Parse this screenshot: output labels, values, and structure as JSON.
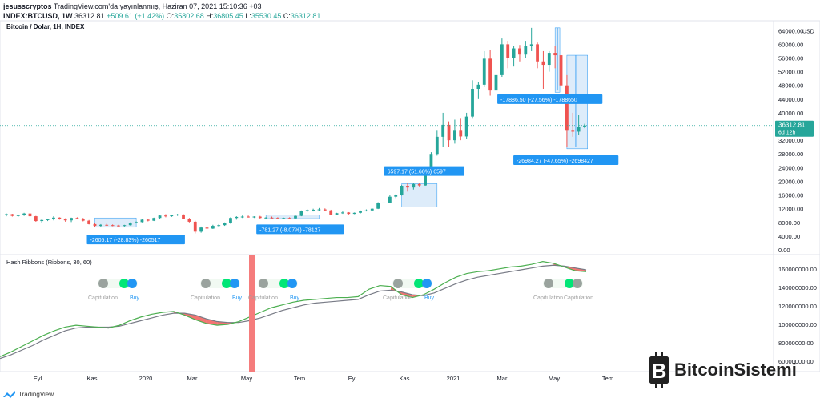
{
  "header": {
    "user": "jesusscryptos",
    "published": "TradingView.com'da yayınlanmış, Haziran 07, 2021 15:10:36 +03",
    "symbol": "INDEX:BTCUSD, 1W",
    "last": "36312.81",
    "change": "+509.61 (+1.42%)",
    "o_label": "O:",
    "o_val": "35802.68",
    "h_label": "H:",
    "h_val": "36805.45",
    "l_label": "L:",
    "l_val": "35530.45",
    "c_label": "C:",
    "c_val": "36312.81"
  },
  "colors": {
    "up": "#26a69a",
    "down": "#ef5350",
    "selection": "#cfe4f8",
    "label_bg": "#2196f3",
    "green_line": "#4caf50",
    "gray_line": "#787b86",
    "ribbon_fill": "#ef5350",
    "capitulation_bar": "#f57c7c",
    "buy_text": "#2196f3",
    "cap_text": "#9e9e9e",
    "price_tag": "#26a69a"
  },
  "chart_data": [
    {
      "type": "candlestick",
      "title": "Bitcoin / Dolar, 1H, INDEX",
      "axis_unit": "USD",
      "y_ticks": [
        "64000.00",
        "60000.00",
        "56000.00",
        "52000.00",
        "48000.00",
        "44000.00",
        "40000.00",
        "36000.00",
        "32000.00",
        "28000.00",
        "24000.00",
        "20000.00",
        "16000.00",
        "12000.00",
        "8000.00",
        "4000.00",
        "0.00"
      ],
      "ylim": [
        0,
        65000
      ],
      "x_ticks": [
        "Eyl",
        "Kas",
        "2020",
        "Mar",
        "May",
        "Tem",
        "Eyl",
        "Kas",
        "2021",
        "Mar",
        "May",
        "Tem"
      ],
      "candles": [
        [
          10200,
          10600,
          9800,
          10400
        ],
        [
          10400,
          10500,
          9700,
          9900
        ],
        [
          9900,
          10300,
          9600,
          10100
        ],
        [
          10100,
          10800,
          9900,
          10600
        ],
        [
          10600,
          10700,
          9600,
          9800
        ],
        [
          9800,
          9900,
          8200,
          8400
        ],
        [
          8400,
          8900,
          7800,
          8700
        ],
        [
          8700,
          9100,
          8400,
          8900
        ],
        [
          8900,
          9800,
          8600,
          9400
        ],
        [
          9400,
          9500,
          8800,
          9000
        ],
        [
          9000,
          9200,
          8200,
          8600
        ],
        [
          8600,
          9400,
          8100,
          9300
        ],
        [
          9300,
          9500,
          8900,
          9100
        ],
        [
          9100,
          9300,
          8300,
          8500
        ],
        [
          8500,
          8700,
          7400,
          7500
        ],
        [
          7500,
          7700,
          6700,
          7000
        ],
        [
          7000,
          7500,
          6600,
          7300
        ],
        [
          7300,
          7600,
          7000,
          7200
        ],
        [
          7200,
          7400,
          6900,
          7100
        ],
        [
          7100,
          7300,
          6800,
          7000
        ],
        [
          7000,
          7300,
          6800,
          7200
        ],
        [
          7200,
          8000,
          7100,
          7900
        ],
        [
          7900,
          8300,
          7700,
          8100
        ],
        [
          8100,
          8900,
          8000,
          8800
        ],
        [
          8800,
          9000,
          8300,
          8500
        ],
        [
          8500,
          9400,
          8400,
          9300
        ],
        [
          9300,
          10200,
          9100,
          10000
        ],
        [
          10000,
          10400,
          9500,
          9800
        ],
        [
          9800,
          10200,
          9600,
          10100
        ],
        [
          10100,
          10500,
          9900,
          10300
        ],
        [
          10300,
          10400,
          8900,
          9100
        ],
        [
          9100,
          9300,
          8000,
          8200
        ],
        [
          8200,
          8500,
          4800,
          5300
        ],
        [
          5300,
          6800,
          5000,
          6500
        ],
        [
          6500,
          6900,
          5800,
          6200
        ],
        [
          6200,
          7300,
          6100,
          7000
        ],
        [
          7000,
          7500,
          6600,
          7200
        ],
        [
          7200,
          8000,
          7000,
          7800
        ],
        [
          7800,
          9500,
          7600,
          9300
        ],
        [
          9300,
          9800,
          8800,
          9600
        ],
        [
          9600,
          10000,
          9300,
          9700
        ],
        [
          9700,
          10000,
          9400,
          9500
        ],
        [
          9500,
          9800,
          9300,
          9700
        ],
        [
          9700,
          9900,
          9100,
          9300
        ],
        [
          9300,
          9600,
          9100,
          9400
        ],
        [
          9400,
          9700,
          9200,
          9300
        ],
        [
          9300,
          9500,
          9100,
          9200
        ],
        [
          9200,
          9400,
          9100,
          9300
        ],
        [
          9300,
          9500,
          9150,
          9200
        ],
        [
          9200,
          10000,
          9100,
          9900
        ],
        [
          9900,
          11500,
          9800,
          11300
        ],
        [
          11300,
          11800,
          11100,
          11600
        ],
        [
          11600,
          12000,
          11200,
          11700
        ],
        [
          11700,
          12200,
          11400,
          11800
        ],
        [
          11800,
          12100,
          11300,
          11500
        ],
        [
          11500,
          11700,
          10100,
          10300
        ],
        [
          10300,
          10800,
          10200,
          10700
        ],
        [
          10700,
          11200,
          10500,
          10900
        ],
        [
          10900,
          11000,
          10300,
          10500
        ],
        [
          10500,
          10900,
          10400,
          10800
        ],
        [
          10800,
          11500,
          10600,
          11400
        ],
        [
          11400,
          11800,
          11200,
          11500
        ],
        [
          11500,
          12100,
          11300,
          12000
        ],
        [
          12000,
          13900,
          11900,
          13600
        ],
        [
          13600,
          14100,
          13300,
          13800
        ],
        [
          13800,
          15900,
          13600,
          15500
        ],
        [
          15500,
          16200,
          15100,
          16000
        ],
        [
          16000,
          18900,
          15800,
          18700
        ],
        [
          18700,
          19500,
          17000,
          18200
        ],
        [
          18200,
          19400,
          17600,
          19200
        ],
        [
          19200,
          19500,
          18500,
          18800
        ],
        [
          18800,
          24000,
          18700,
          23700
        ],
        [
          23700,
          28500,
          23300,
          28000
        ],
        [
          28000,
          35000,
          27500,
          33000
        ],
        [
          33000,
          40000,
          30000,
          36500
        ],
        [
          36500,
          37500,
          30000,
          32000
        ],
        [
          32000,
          38000,
          31000,
          35000
        ],
        [
          35000,
          38500,
          32000,
          33100
        ],
        [
          33100,
          40000,
          32500,
          38900
        ],
        [
          38900,
          49500,
          38500,
          47000
        ],
        [
          47000,
          49000,
          44000,
          48200
        ],
        [
          48200,
          58000,
          47500,
          55800
        ],
        [
          55800,
          58300,
          45000,
          46500
        ],
        [
          46500,
          52000,
          43000,
          51000
        ],
        [
          51000,
          61700,
          50500,
          60000
        ],
        [
          60000,
          61000,
          53000,
          56000
        ],
        [
          56000,
          59500,
          53500,
          58800
        ],
        [
          58800,
          59800,
          55000,
          57000
        ],
        [
          57000,
          61000,
          56000,
          59500
        ],
        [
          59500,
          64800,
          58000,
          60000
        ],
        [
          60000,
          60500,
          53000,
          55000
        ],
        [
          55000,
          58000,
          47000,
          54000
        ],
        [
          54000,
          58000,
          52000,
          57500
        ],
        [
          57500,
          59500,
          53000,
          56800
        ],
        [
          56800,
          57000,
          46000,
          48000
        ],
        [
          48000,
          51000,
          30000,
          35000
        ],
        [
          35000,
          40000,
          33000,
          34500
        ],
        [
          34500,
          39500,
          33500,
          35800
        ],
        [
          35800,
          36800,
          35500,
          36300
        ]
      ],
      "annotations": [
        {
          "text": "-2605.17 (-28.83%) -260517"
        },
        {
          "text": "-781.27 (-8.07%) -78127"
        },
        {
          "text": "6597.17 (51.60%) 6597"
        },
        {
          "text": "-17886.50 (-27.56%) -1788650"
        },
        {
          "text": "-26984.27 (-47.65%) -2698427"
        }
      ],
      "price_tag": {
        "value": "36312.81",
        "countdown": "6d 12h"
      }
    },
    {
      "type": "line",
      "title": "Hash Ribbons (Ribbons, 30, 60)",
      "y_ticks": [
        "160000000.00",
        "140000000.00",
        "120000000.00",
        "100000000.00",
        "80000000.00",
        "60000000.00"
      ],
      "ylim": [
        54000000,
        172000000
      ],
      "series": [
        {
          "values": [
            65,
            70,
            76,
            82,
            88,
            93,
            97,
            99,
            98,
            97,
            96,
            99,
            104,
            108,
            111,
            113,
            114,
            110,
            105,
            101,
            99,
            100,
            103,
            108,
            113,
            118,
            121,
            124,
            126,
            127,
            128,
            129,
            129,
            130,
            138,
            142,
            141,
            132,
            129,
            132,
            138,
            145,
            151,
            155,
            157,
            158,
            160,
            162,
            163,
            165,
            168,
            166,
            162,
            158,
            157
          ]
        },
        {
          "values": [
            63,
            67,
            72,
            77,
            83,
            88,
            93,
            96,
            97,
            97,
            97,
            98,
            101,
            104,
            107,
            110,
            112,
            112,
            110,
            106,
            103,
            102,
            102,
            104,
            107,
            111,
            115,
            118,
            121,
            123,
            124,
            125,
            126,
            127,
            132,
            136,
            137,
            135,
            132,
            131,
            134,
            139,
            144,
            148,
            151,
            153,
            155,
            157,
            159,
            161,
            163,
            164,
            163,
            161,
            159
          ]
        }
      ],
      "signals": [
        {
          "label": "Capitulation",
          "buy": "Buy"
        },
        {
          "label": "Capitulation",
          "buy": "Buy"
        },
        {
          "label": "Capitulation",
          "buy": "Buy"
        },
        {
          "label": "Capitulation",
          "buy": "Buy"
        },
        {
          "label": "Capitulation",
          "label2": "Capitulation"
        }
      ]
    }
  ],
  "footer": {
    "brand": "TradingView"
  },
  "watermark": {
    "text": "BitcoinSistemi",
    "logo_icon": "bitcoin-logo-icon"
  }
}
